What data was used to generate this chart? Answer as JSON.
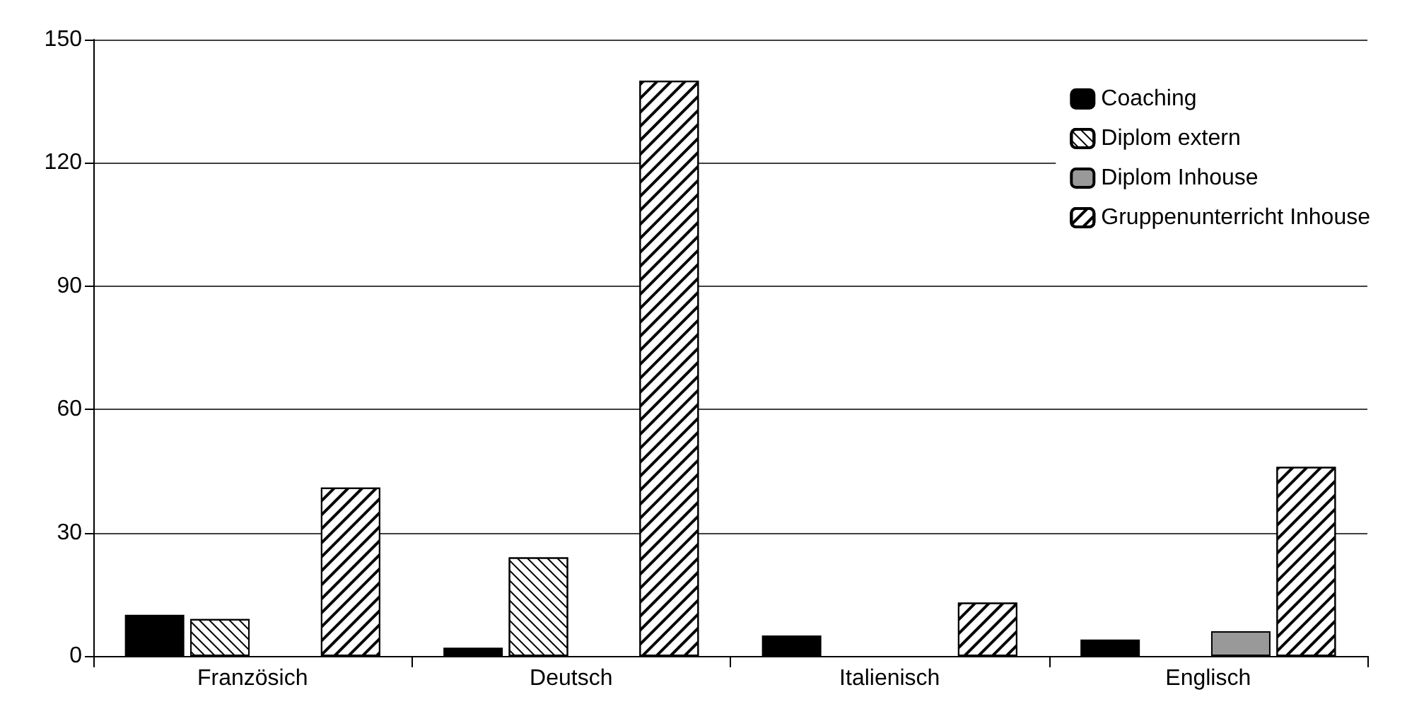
{
  "chart_data": {
    "type": "bar",
    "categories": [
      "Französich",
      "Deutsch",
      "Italienisch",
      "Englisch"
    ],
    "series": [
      {
        "name": "Coaching",
        "color": "#000000",
        "values": [
          10,
          2,
          5,
          4
        ]
      },
      {
        "name": "Diplom extern",
        "color": "#ffffff",
        "values": [
          9,
          24,
          null,
          null
        ]
      },
      {
        "name": "Diplom Inhouse",
        "color": "#999999",
        "values": [
          null,
          null,
          null,
          6
        ]
      },
      {
        "name": "Gruppenunterricht Inhouse",
        "color": "#ffffff",
        "values": [
          41,
          140,
          13,
          46
        ]
      }
    ],
    "ylim": [
      0,
      150
    ],
    "yticks": [
      0,
      30,
      60,
      90,
      120,
      150
    ],
    "grid": "y",
    "legend": "top right"
  }
}
